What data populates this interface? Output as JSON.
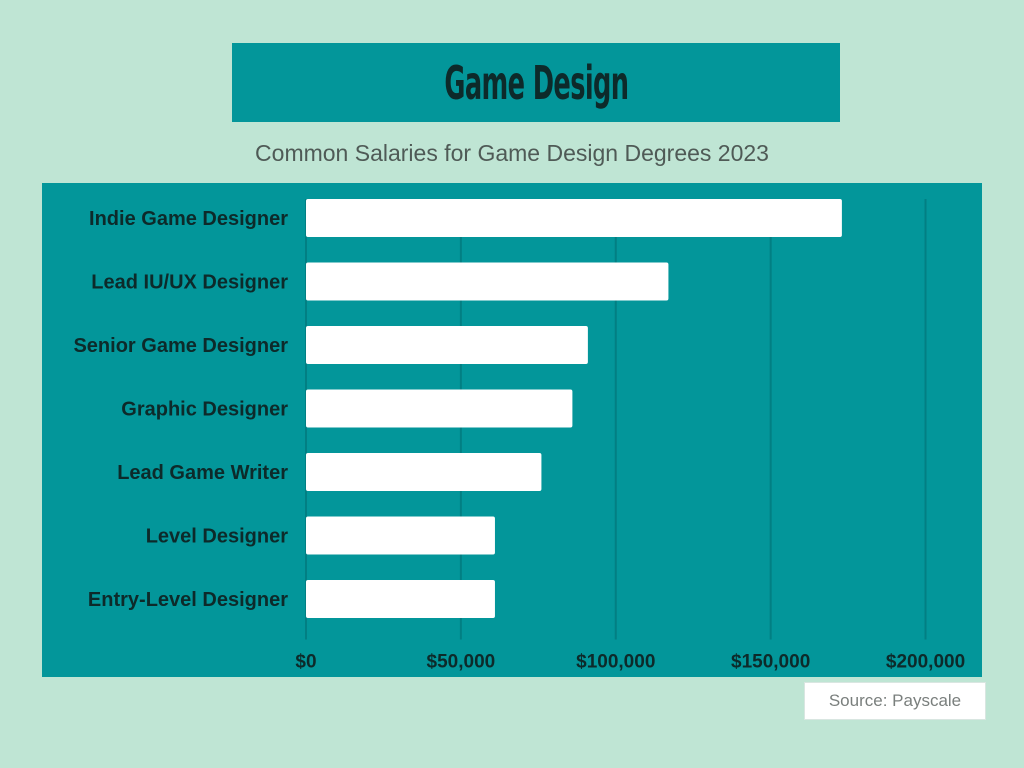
{
  "header": {
    "title": "Game Design"
  },
  "subtitle": "Common Salaries for Game Design Degrees 2023",
  "source": "Source: Payscale",
  "colors": {
    "background": "#bfe5d4",
    "panel": "#03969a",
    "bar": "#ffffff",
    "label": "#0d2a2a",
    "grid": "#027f83"
  },
  "chart_data": {
    "type": "bar",
    "orientation": "horizontal",
    "categories": [
      "Indie Game Designer",
      "Lead IU/UX Designer",
      "Senior Game Designer",
      "Graphic Designer",
      "Lead Game Writer",
      "Level Designer",
      "Entry-Level Designer"
    ],
    "values": [
      173000,
      117000,
      91000,
      86000,
      76000,
      61000,
      61000
    ],
    "xlim": [
      0,
      215000
    ],
    "xticks": [
      0,
      50000,
      100000,
      150000,
      200000
    ],
    "xtick_labels": [
      "$0",
      "$50,000",
      "$100,000",
      "$150,000",
      "$200,000"
    ],
    "grid": true
  }
}
